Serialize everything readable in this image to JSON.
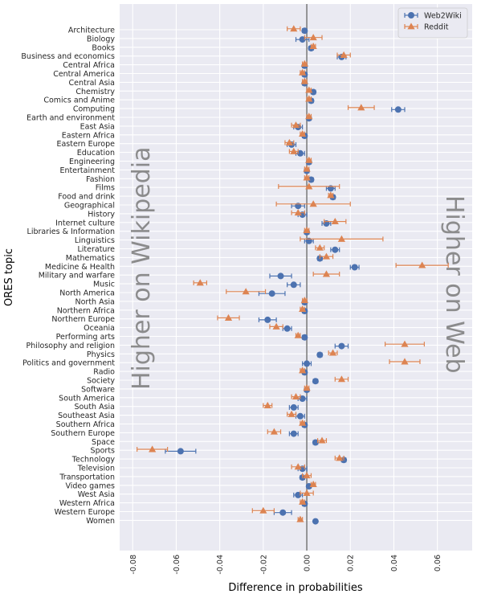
{
  "chart_data": {
    "type": "scatter",
    "subtype": "dot-with-error-bars",
    "orientation": "horizontal",
    "title": "",
    "xlabel": "Difference in probabilities",
    "ylabel": "ORES topic",
    "xlim": [
      -0.086,
      0.076
    ],
    "x_ticks": [
      -0.08,
      -0.06,
      -0.04,
      -0.02,
      0.0,
      0.02,
      0.04,
      0.06
    ],
    "x_tick_labels": [
      "-0.08",
      "-0.06",
      "-0.04",
      "-0.02",
      "0.00",
      "0.02",
      "0.04",
      "0.06"
    ],
    "grid": true,
    "zero_line": true,
    "legend_position": "top-right",
    "annotations": {
      "left": "Higher on Wikipedia",
      "right": "Higher on Web"
    },
    "categories": [
      "Architecture",
      "Biology",
      "Books",
      "Business and economics",
      "Central Africa",
      "Central America",
      "Central Asia",
      "Chemistry",
      "Comics and Anime",
      "Computing",
      "Earth and environment",
      "East Asia",
      "Eastern Africa",
      "Eastern Europe",
      "Education",
      "Engineering",
      "Entertainment",
      "Fashion",
      "Films",
      "Food and drink",
      "Geographical",
      "History",
      "Internet culture",
      "Libraries & Information",
      "Linguistics",
      "Literature",
      "Mathematics",
      "Medicine & Health",
      "Military and warfare",
      "Music",
      "North America",
      "North Asia",
      "Northern Africa",
      "Northern Europe",
      "Oceania",
      "Performing arts",
      "Philosophy and religion",
      "Physics",
      "Politics and government",
      "Radio",
      "Society",
      "Software",
      "South America",
      "South Asia",
      "Southeast Asia",
      "Southern Africa",
      "Southern Europe",
      "Space",
      "Sports",
      "Technology",
      "Television",
      "Transportation",
      "Video games",
      "West Asia",
      "Western Africa",
      "Western Europe",
      "Women"
    ],
    "series": [
      {
        "name": "Web2Wiki",
        "color": "#4c72b0",
        "marker": "circle",
        "values": [
          -0.001,
          -0.002,
          0.002,
          0.016,
          -0.001,
          -0.001,
          -0.001,
          0.003,
          0.002,
          0.042,
          0.001,
          -0.004,
          -0.001,
          -0.007,
          -0.003,
          0.001,
          0.0,
          0.002,
          0.011,
          0.012,
          -0.004,
          -0.002,
          0.009,
          0.0,
          0.001,
          0.013,
          0.006,
          0.022,
          -0.012,
          -0.006,
          -0.016,
          -0.001,
          -0.001,
          -0.018,
          -0.009,
          -0.001,
          0.016,
          0.006,
          0.0,
          -0.001,
          0.004,
          0.0,
          -0.002,
          -0.006,
          -0.003,
          -0.001,
          -0.006,
          0.004,
          -0.058,
          0.017,
          -0.002,
          -0.002,
          0.001,
          -0.004,
          -0.001,
          -0.011,
          0.004
        ],
        "err": [
          0.001,
          0.003,
          0.001,
          0.002,
          0.001,
          0.001,
          0.001,
          0.001,
          0.001,
          0.003,
          0.001,
          0.002,
          0.001,
          0.002,
          0.002,
          0.001,
          0.001,
          0.001,
          0.002,
          0.001,
          0.003,
          0.002,
          0.002,
          0.001,
          0.002,
          0.002,
          0.001,
          0.002,
          0.005,
          0.003,
          0.006,
          0.001,
          0.001,
          0.004,
          0.002,
          0.001,
          0.003,
          0.001,
          0.002,
          0.001,
          0.001,
          0.001,
          0.002,
          0.002,
          0.002,
          0.001,
          0.002,
          0.001,
          0.007,
          0.001,
          0.002,
          0.001,
          0.001,
          0.002,
          0.001,
          0.004,
          0.0
        ]
      },
      {
        "name": "Reddit",
        "color": "#dd8452",
        "marker": "triangle",
        "values": [
          -0.006,
          0.003,
          0.003,
          0.017,
          -0.001,
          -0.002,
          -0.001,
          0.001,
          0.001,
          0.025,
          0.001,
          -0.005,
          -0.002,
          -0.008,
          -0.006,
          0.001,
          0.0,
          0.0,
          0.001,
          0.011,
          0.003,
          -0.004,
          0.013,
          0.0,
          0.016,
          0.006,
          0.009,
          0.053,
          0.009,
          -0.049,
          -0.028,
          -0.001,
          -0.002,
          -0.036,
          -0.014,
          -0.004,
          0.045,
          0.012,
          0.045,
          -0.002,
          0.016,
          0.0,
          -0.005,
          -0.018,
          -0.007,
          -0.002,
          -0.015,
          0.007,
          -0.071,
          0.015,
          -0.004,
          0.0,
          0.003,
          0.0,
          -0.002,
          -0.02,
          -0.003
        ],
        "err": [
          0.003,
          0.004,
          0.001,
          0.003,
          0.001,
          0.001,
          0.001,
          0.001,
          0.001,
          0.006,
          0.001,
          0.002,
          0.001,
          0.002,
          0.002,
          0.001,
          0.001,
          0.001,
          0.014,
          0.001,
          0.017,
          0.003,
          0.005,
          0.001,
          0.019,
          0.002,
          0.003,
          0.012,
          0.006,
          0.003,
          0.009,
          0.001,
          0.001,
          0.005,
          0.003,
          0.001,
          0.009,
          0.002,
          0.007,
          0.001,
          0.003,
          0.001,
          0.002,
          0.002,
          0.002,
          0.001,
          0.003,
          0.002,
          0.007,
          0.002,
          0.003,
          0.002,
          0.001,
          0.003,
          0.001,
          0.005,
          0.001
        ]
      }
    ]
  }
}
